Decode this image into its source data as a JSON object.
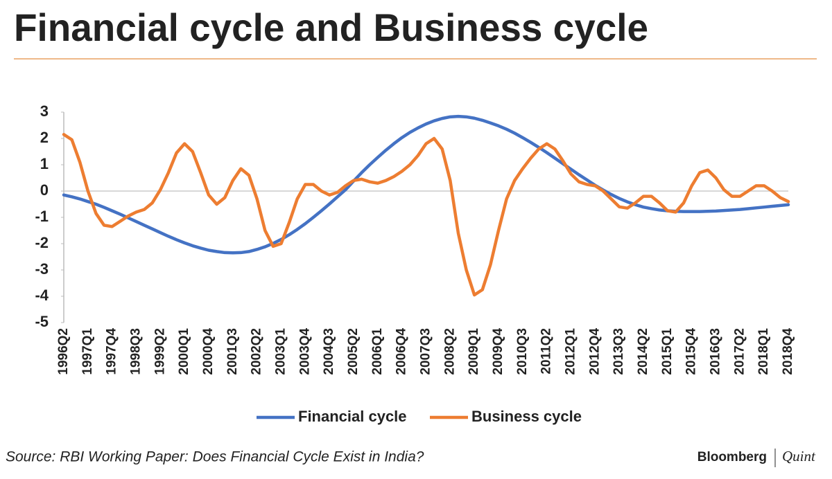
{
  "chart_data": {
    "type": "line",
    "title": "Financial cycle and Business cycle",
    "source": "Source: RBI Working Paper: Does Financial Cycle Exist in India?",
    "brand": [
      "Bloomberg",
      "Quint"
    ],
    "categories": [
      "1996Q2",
      null,
      null,
      "1997Q1",
      null,
      null,
      "1997Q4",
      null,
      null,
      "1998Q3",
      null,
      null,
      "1999Q2",
      null,
      null,
      "2000Q1",
      null,
      null,
      "2000Q4",
      null,
      null,
      "2001Q3",
      null,
      null,
      "2002Q2",
      null,
      null,
      "2003Q1",
      null,
      null,
      "2003Q4",
      null,
      null,
      "2004Q3",
      null,
      null,
      "2005Q2",
      null,
      null,
      "2006Q1",
      null,
      null,
      "2006Q4",
      null,
      null,
      "2007Q3",
      null,
      null,
      "2008Q2",
      null,
      null,
      "2009Q1",
      null,
      null,
      "2009Q4",
      null,
      null,
      "2010Q3",
      null,
      null,
      "2011Q2",
      null,
      null,
      "2012Q1",
      null,
      null,
      "2012Q4",
      null,
      null,
      "2013Q3",
      null,
      null,
      "2014Q2",
      null,
      null,
      "2015Q1",
      null,
      null,
      "2015Q4",
      null,
      null,
      "2016Q3",
      null,
      null,
      "2017Q2",
      null,
      null,
      "2018Q1",
      null,
      null,
      "2018Q4"
    ],
    "series": [
      {
        "name": "Financial cycle",
        "color": "#4472c4",
        "values": [
          -0.15,
          -0.22,
          -0.3,
          -0.4,
          -0.5,
          -0.62,
          -0.75,
          -0.88,
          -1.02,
          -1.16,
          -1.3,
          -1.44,
          -1.58,
          -1.72,
          -1.85,
          -1.97,
          -2.08,
          -2.17,
          -2.25,
          -2.3,
          -2.34,
          -2.35,
          -2.34,
          -2.3,
          -2.22,
          -2.12,
          -1.99,
          -1.84,
          -1.66,
          -1.46,
          -1.24,
          -1.0,
          -0.75,
          -0.49,
          -0.22,
          0.05,
          0.38,
          0.7,
          1.0,
          1.28,
          1.55,
          1.8,
          2.03,
          2.23,
          2.4,
          2.55,
          2.67,
          2.76,
          2.82,
          2.84,
          2.82,
          2.77,
          2.69,
          2.59,
          2.48,
          2.35,
          2.2,
          2.03,
          1.85,
          1.66,
          1.46,
          1.25,
          1.04,
          0.83,
          0.62,
          0.42,
          0.22,
          0.04,
          -0.13,
          -0.28,
          -0.41,
          -0.52,
          -0.61,
          -0.67,
          -0.72,
          -0.75,
          -0.77,
          -0.78,
          -0.78,
          -0.78,
          -0.77,
          -0.76,
          -0.74,
          -0.72,
          -0.7,
          -0.67,
          -0.64,
          -0.61,
          -0.58,
          -0.55,
          -0.52
        ]
      },
      {
        "name": "Business cycle",
        "color": "#ed7d31",
        "values": [
          2.15,
          1.95,
          1.1,
          0.0,
          -0.85,
          -1.3,
          -1.35,
          -1.15,
          -0.95,
          -0.8,
          -0.7,
          -0.45,
          0.05,
          0.7,
          1.45,
          1.8,
          1.5,
          0.7,
          -0.15,
          -0.5,
          -0.25,
          0.4,
          0.85,
          0.6,
          -0.3,
          -1.5,
          -2.1,
          -2.0,
          -1.2,
          -0.3,
          0.25,
          0.25,
          0.0,
          -0.15,
          -0.05,
          0.2,
          0.4,
          0.45,
          0.35,
          0.3,
          0.4,
          0.55,
          0.75,
          1.0,
          1.35,
          1.8,
          2.0,
          1.6,
          0.4,
          -1.6,
          -3.0,
          -3.95,
          -3.75,
          -2.8,
          -1.5,
          -0.3,
          0.4,
          0.85,
          1.25,
          1.6,
          1.8,
          1.6,
          1.15,
          0.65,
          0.35,
          0.25,
          0.2,
          0.0,
          -0.3,
          -0.6,
          -0.65,
          -0.45,
          -0.2,
          -0.2,
          -0.45,
          -0.75,
          -0.8,
          -0.45,
          0.2,
          0.7,
          0.8,
          0.5,
          0.05,
          -0.2,
          -0.2,
          0.0,
          0.2,
          0.2,
          0.0,
          -0.25,
          -0.4
        ]
      }
    ],
    "ylim": [
      -5,
      3
    ],
    "yticks": [
      -5,
      -4,
      -3,
      -2,
      -1,
      0,
      1,
      2,
      3
    ],
    "grid": false
  }
}
